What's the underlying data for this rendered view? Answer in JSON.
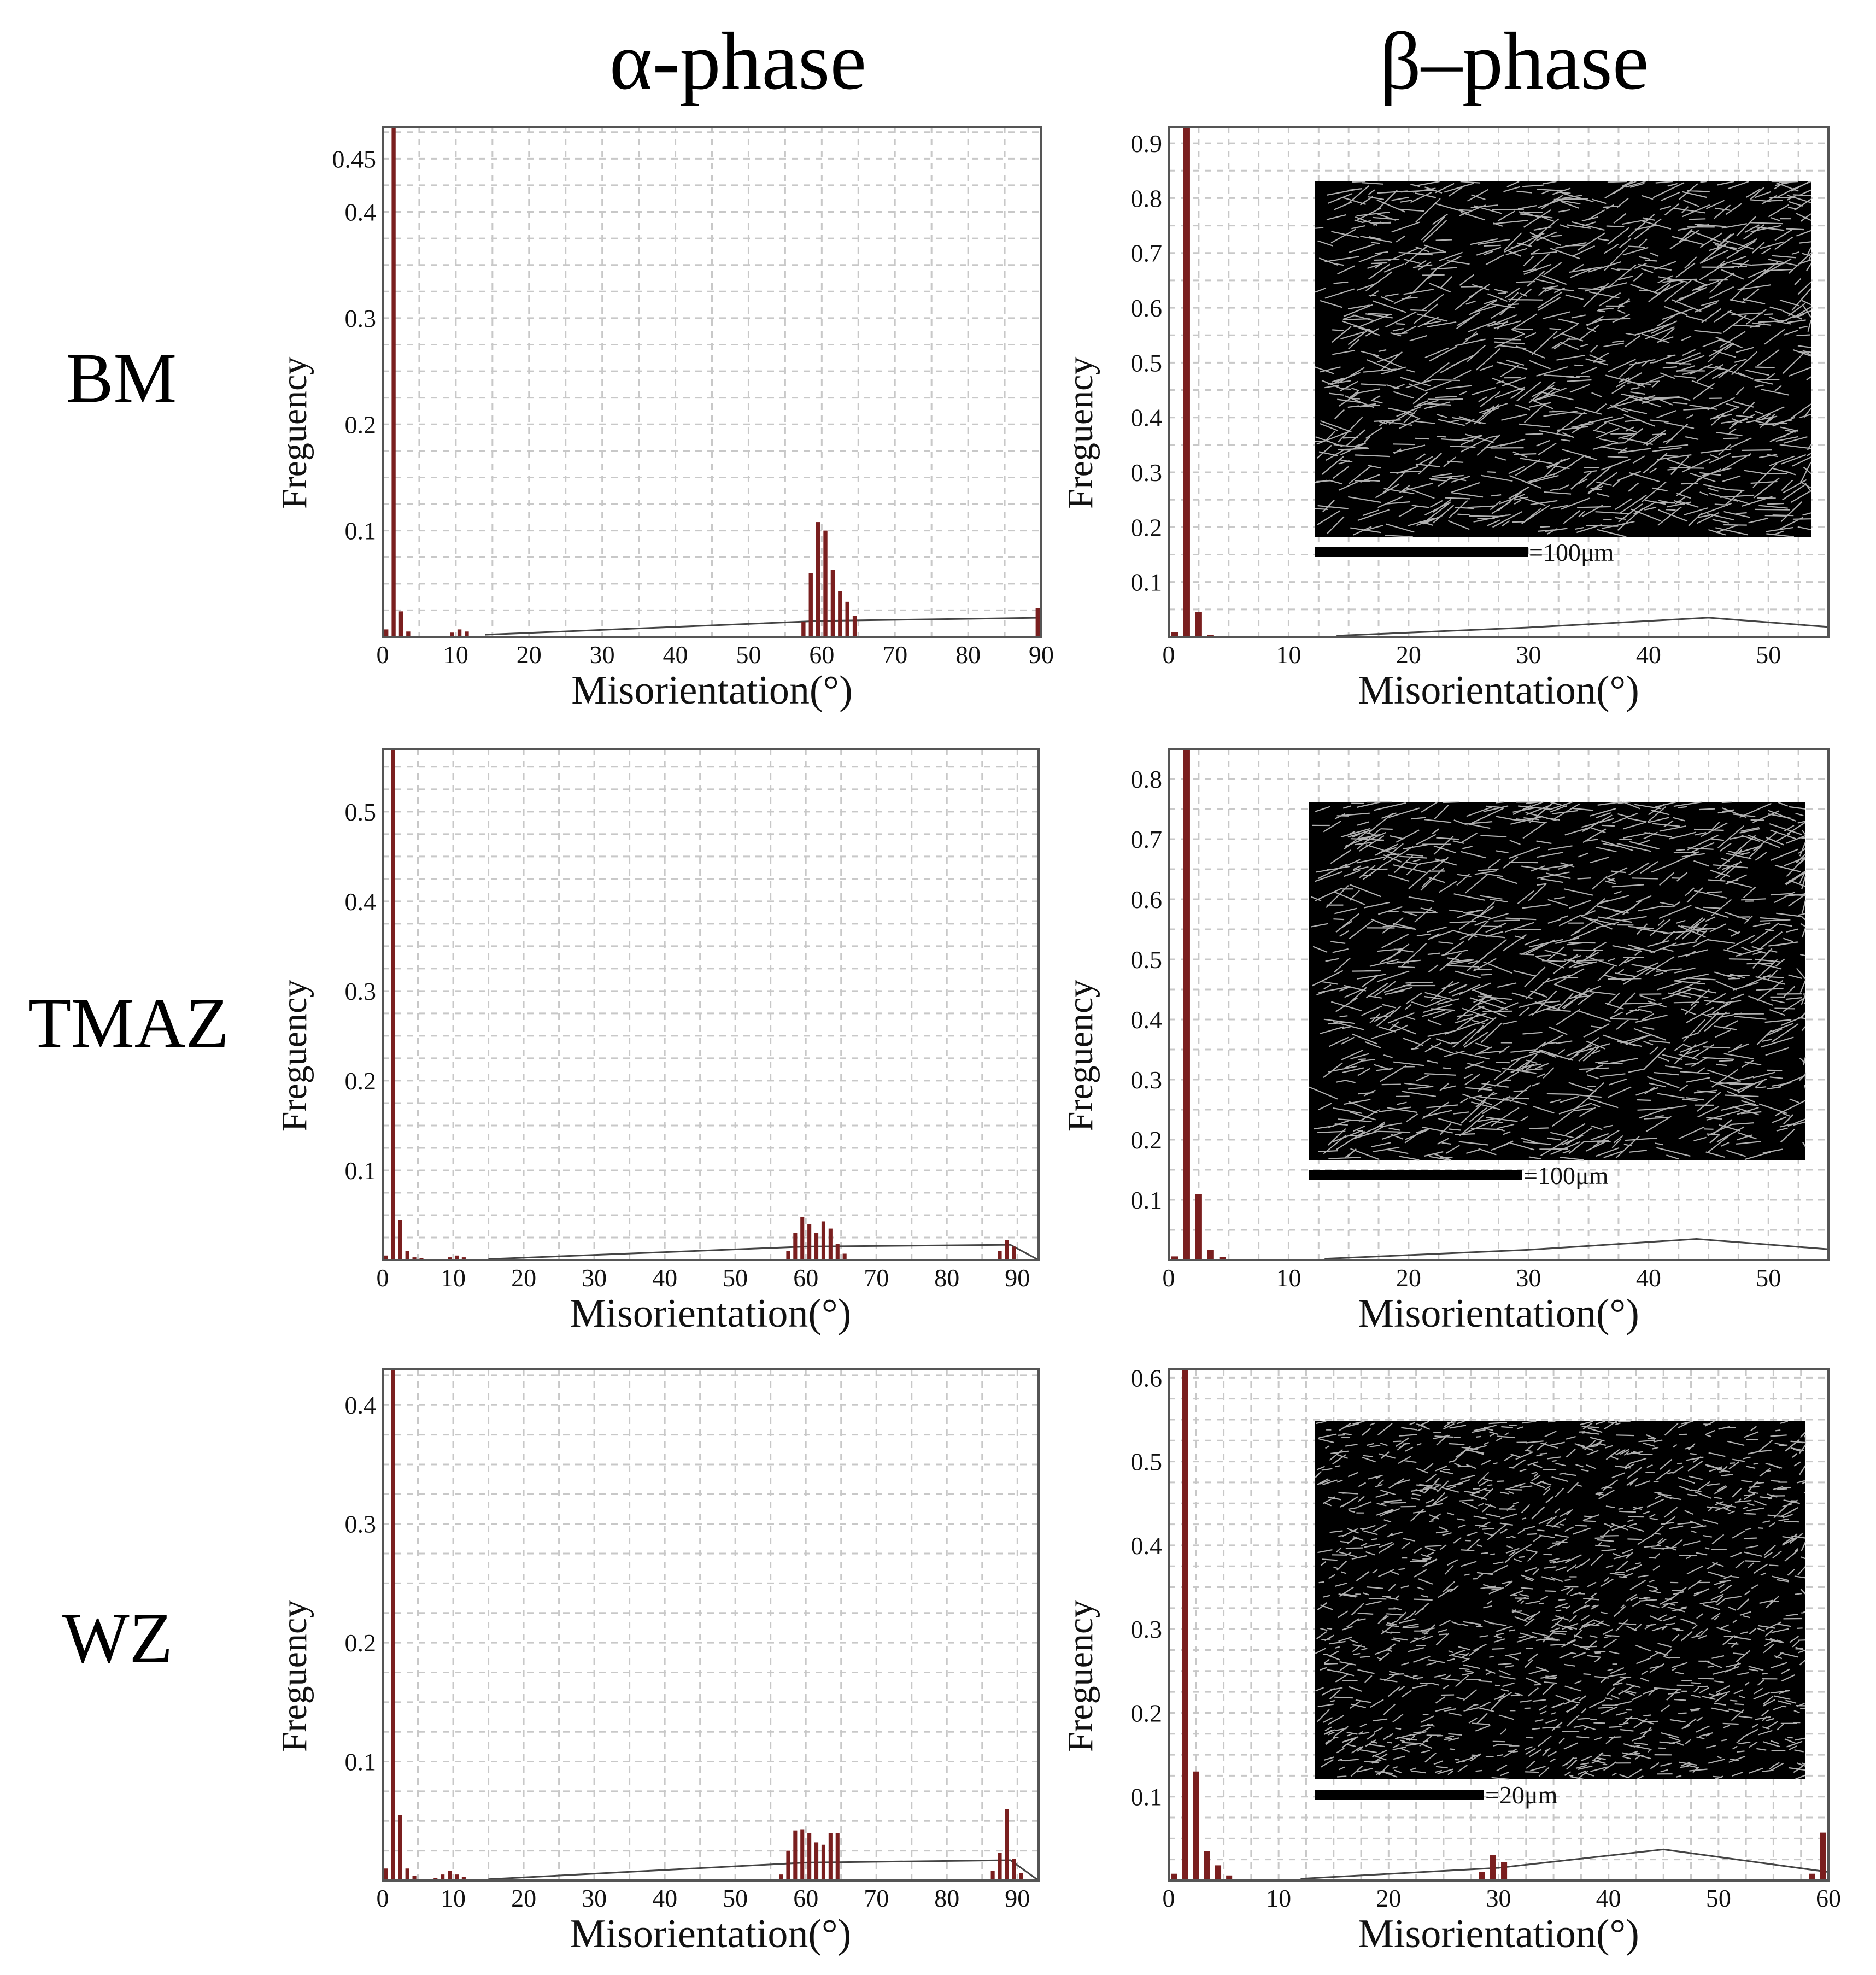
{
  "column_titles": [
    "α-phase",
    "β–phase"
  ],
  "row_labels": [
    "BM",
    "TMAZ",
    "WZ"
  ],
  "colors": {
    "bar": "#7a1f1f",
    "line": "#444444",
    "grid": "#c8c8c8",
    "inset_bg": "#000000",
    "micro_line": "#cfcfcf"
  },
  "chart_data": [
    {
      "id": "alpha-BM",
      "type": "bar",
      "xlabel": "Misorientation(°)",
      "ylabel": "Freguency",
      "xlim": [
        0,
        90
      ],
      "ylim": [
        0,
        0.48
      ],
      "xticks": [
        0,
        10,
        20,
        30,
        40,
        50,
        60,
        70,
        80,
        90
      ],
      "yticks": [
        0.1,
        0.2,
        0.3,
        0.4,
        0.45
      ],
      "bars": {
        "x": [
          0.5,
          1.5,
          2.5,
          3.5,
          9.5,
          10.5,
          11.5,
          57.5,
          58.5,
          59.5,
          60.5,
          61.5,
          62.5,
          63.5,
          64.5,
          89.5
        ],
        "y": [
          0.007,
          0.48,
          0.024,
          0.005,
          0.004,
          0.007,
          0.005,
          0.014,
          0.06,
          0.108,
          0.1,
          0.063,
          0.043,
          0.033,
          0.02,
          0.027
        ]
      },
      "curve": {
        "x": [
          14,
          60,
          90
        ],
        "y": [
          0.002,
          0.015,
          0.018
        ]
      },
      "inset": null
    },
    {
      "id": "beta-BM",
      "type": "bar",
      "xlabel": "Misorientation(°)",
      "ylabel": "Freguency",
      "xlim": [
        0,
        55
      ],
      "ylim": [
        0,
        0.93
      ],
      "xticks": [
        0,
        10,
        20,
        30,
        40,
        50
      ],
      "yticks": [
        0.1,
        0.2,
        0.3,
        0.4,
        0.5,
        0.6,
        0.7,
        0.8,
        0.9
      ],
      "bars": {
        "x": [
          0.5,
          1.5,
          2.5,
          3.5
        ],
        "y": [
          0.008,
          0.93,
          0.045,
          0.004
        ]
      },
      "curve": {
        "x": [
          14,
          30,
          45,
          55
        ],
        "y": [
          0.002,
          0.017,
          0.035,
          0.018
        ]
      },
      "inset": {
        "scale_label": "=100μm"
      }
    },
    {
      "id": "alpha-TMAZ",
      "type": "bar",
      "xlabel": "Misorientation(°)",
      "ylabel": "Freguency",
      "xlim": [
        0,
        93
      ],
      "ylim": [
        0,
        0.57
      ],
      "xticks": [
        0,
        10,
        20,
        30,
        40,
        50,
        60,
        70,
        80,
        90
      ],
      "yticks": [
        0.1,
        0.2,
        0.3,
        0.4,
        0.5
      ],
      "bars": {
        "x": [
          0.5,
          1.5,
          2.5,
          3.5,
          4.5,
          5.5,
          9.5,
          10.5,
          11.5,
          57.5,
          58.5,
          59.5,
          60.5,
          61.5,
          62.5,
          63.5,
          64.5,
          65.5,
          87.5,
          88.5,
          89.5
        ],
        "y": [
          0.005,
          0.57,
          0.045,
          0.01,
          0.003,
          0.002,
          0.003,
          0.005,
          0.003,
          0.01,
          0.03,
          0.048,
          0.04,
          0.03,
          0.043,
          0.035,
          0.018,
          0.007,
          0.01,
          0.022,
          0.015
        ]
      },
      "curve": {
        "x": [
          15,
          60,
          89,
          93
        ],
        "y": [
          0.001,
          0.015,
          0.017,
          0.0
        ]
      },
      "inset": null
    },
    {
      "id": "beta-TMAZ",
      "type": "bar",
      "xlabel": "Misorientation(°)",
      "ylabel": "Freguency",
      "xlim": [
        0,
        55
      ],
      "ylim": [
        0,
        0.85
      ],
      "xticks": [
        0,
        10,
        20,
        30,
        40,
        50
      ],
      "yticks": [
        0.1,
        0.2,
        0.3,
        0.4,
        0.5,
        0.6,
        0.7,
        0.8
      ],
      "bars": {
        "x": [
          0.5,
          1.5,
          2.5,
          3.5,
          4.5
        ],
        "y": [
          0.006,
          0.85,
          0.11,
          0.017,
          0.005
        ]
      },
      "curve": {
        "x": [
          13,
          30,
          44,
          55
        ],
        "y": [
          0.002,
          0.017,
          0.035,
          0.018
        ]
      },
      "inset": {
        "scale_label": "=100μm"
      }
    },
    {
      "id": "alpha-WZ",
      "type": "bar",
      "xlabel": "Misorientation(°)",
      "ylabel": "Freguency",
      "xlim": [
        0,
        93
      ],
      "ylim": [
        0,
        0.43
      ],
      "xticks": [
        0,
        10,
        20,
        30,
        40,
        50,
        60,
        70,
        80,
        90
      ],
      "yticks": [
        0.1,
        0.2,
        0.3,
        0.4
      ],
      "bars": {
        "x": [
          0.5,
          1.5,
          2.5,
          3.5,
          4.5,
          7.5,
          8.5,
          9.5,
          10.5,
          11.5,
          56.5,
          57.5,
          58.5,
          59.5,
          60.5,
          61.5,
          62.5,
          63.5,
          64.5,
          86.5,
          87.5,
          88.5,
          89.5,
          90.5
        ],
        "y": [
          0.01,
          0.43,
          0.055,
          0.01,
          0.004,
          0.002,
          0.005,
          0.008,
          0.005,
          0.003,
          0.005,
          0.025,
          0.042,
          0.043,
          0.04,
          0.032,
          0.03,
          0.04,
          0.04,
          0.008,
          0.023,
          0.06,
          0.018,
          0.006
        ]
      },
      "curve": {
        "x": [
          15,
          60,
          89,
          93
        ],
        "y": [
          0.001,
          0.015,
          0.017,
          0.0
        ]
      },
      "inset": null
    },
    {
      "id": "beta-WZ",
      "type": "bar",
      "xlabel": "Misorientation(°)",
      "ylabel": "Freguency",
      "xlim": [
        0,
        60
      ],
      "ylim": [
        0,
        0.61
      ],
      "xticks": [
        0,
        10,
        20,
        30,
        40,
        50,
        60
      ],
      "yticks": [
        0.1,
        0.2,
        0.3,
        0.4,
        0.5,
        0.6
      ],
      "bars": {
        "x": [
          0.5,
          1.5,
          2.5,
          3.5,
          4.5,
          5.5,
          28.5,
          29.5,
          30.5,
          58.5,
          59.5
        ],
        "y": [
          0.008,
          0.61,
          0.13,
          0.035,
          0.018,
          0.006,
          0.01,
          0.03,
          0.022,
          0.008,
          0.057
        ]
      },
      "curve": {
        "x": [
          12,
          30,
          45,
          60
        ],
        "y": [
          0.002,
          0.015,
          0.037,
          0.01
        ]
      },
      "inset": {
        "scale_label": "=20μm"
      }
    }
  ]
}
